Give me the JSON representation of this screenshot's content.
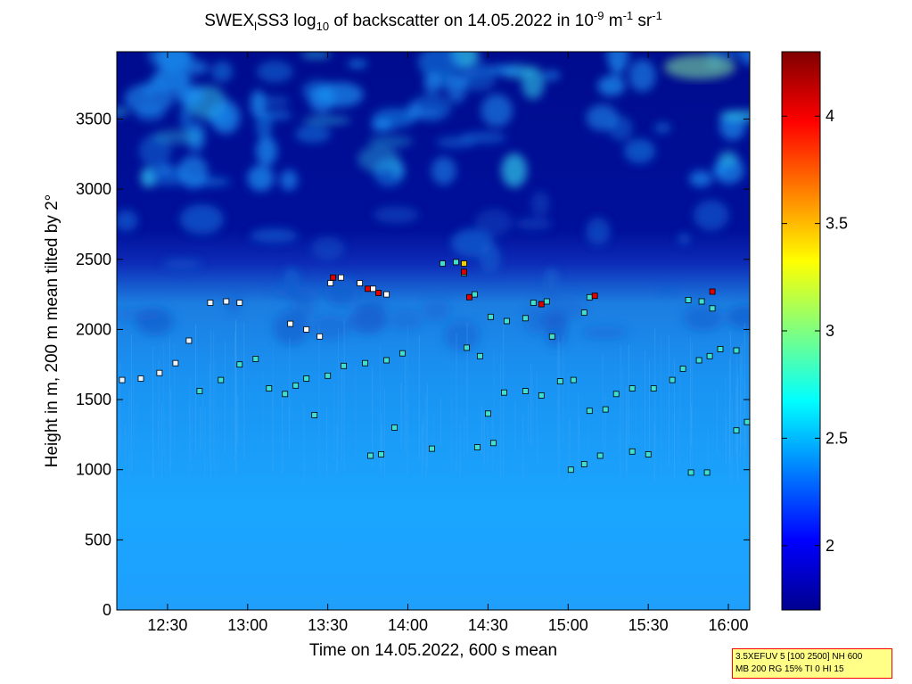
{
  "title": {
    "prefix": "SWEX",
    "sub1": "l",
    "mid": "SS3 log",
    "sub2": "10",
    "rest": " of backscatter on 14.05.2022 in 10",
    "sup1": "-9",
    "unit1": " m",
    "sup2": "-1",
    "unit2": " sr",
    "sup3": "-1"
  },
  "info_box": {
    "line1": "3.5XEFUV 5 [100 2500] NH 600",
    "line2": "MB 200 RG 15% TI 0 HI 15"
  },
  "chart_data": {
    "type": "heatmap",
    "xlabel": "Time on 14.05.2022, 600 s mean",
    "ylabel": "Height in m, 200 m mean tilted by 2°",
    "x_range": [
      "12:11",
      "16:08"
    ],
    "ylim": [
      0,
      3980
    ],
    "x_ticks": [
      "12:30",
      "13:00",
      "13:30",
      "14:00",
      "14:30",
      "15:00",
      "15:30",
      "16:00"
    ],
    "y_ticks": [
      0,
      500,
      1000,
      1500,
      2000,
      2500,
      3000,
      3500
    ],
    "colorbar": {
      "colormap": "jet",
      "range": [
        1.7,
        4.3
      ],
      "ticks": [
        2,
        2.5,
        3,
        3.5,
        4
      ]
    },
    "cloud_base_markers": [
      {
        "name": "layer-1",
        "color": "#e8f4ff",
        "points": [
          [
            "12:13",
            1640
          ],
          [
            "12:20",
            1650
          ],
          [
            "12:27",
            1690
          ],
          [
            "12:33",
            1760
          ],
          [
            "12:38",
            1920
          ],
          [
            "12:46",
            2190
          ],
          [
            "12:52",
            2200
          ],
          [
            "12:57",
            2190
          ]
        ]
      },
      {
        "name": "layer-2",
        "color": "#40e0d0",
        "points": [
          [
            "12:42",
            1560
          ],
          [
            "12:50",
            1640
          ],
          [
            "12:57",
            1750
          ],
          [
            "13:03",
            1790
          ],
          [
            "13:08",
            1580
          ],
          [
            "13:14",
            1540
          ],
          [
            "13:18",
            1600
          ],
          [
            "13:22",
            1650
          ],
          [
            "13:25",
            1390
          ]
        ]
      },
      {
        "name": "layer-3",
        "color": "#ffffff",
        "points": [
          [
            "13:16",
            2040
          ],
          [
            "13:22",
            2000
          ],
          [
            "13:27",
            1950
          ],
          [
            "13:31",
            2330
          ],
          [
            "13:35",
            2370
          ],
          [
            "13:42",
            2330
          ],
          [
            "13:47",
            2290
          ],
          [
            "13:52",
            2250
          ]
        ]
      },
      {
        "name": "layer-4",
        "color": "#40e0d0",
        "points": [
          [
            "13:30",
            1670
          ],
          [
            "13:36",
            1740
          ],
          [
            "13:44",
            1760
          ],
          [
            "13:52",
            1780
          ],
          [
            "13:58",
            1830
          ],
          [
            "13:55",
            1300
          ],
          [
            "13:50",
            1110
          ],
          [
            "13:46",
            1100
          ]
        ]
      },
      {
        "name": "layer-5",
        "color": "#40e0d0",
        "points": [
          [
            "14:09",
            1150
          ],
          [
            "14:13",
            2470
          ],
          [
            "14:18",
            2480
          ],
          [
            "14:21",
            2400
          ],
          [
            "14:25",
            2250
          ],
          [
            "14:22",
            1870
          ],
          [
            "14:27",
            1810
          ],
          [
            "14:30",
            1400
          ],
          [
            "14:26",
            1160
          ],
          [
            "14:32",
            1190
          ]
        ]
      },
      {
        "name": "layer-6",
        "color": "#40e0d0",
        "points": [
          [
            "14:31",
            2090
          ],
          [
            "14:37",
            2060
          ],
          [
            "14:44",
            2080
          ],
          [
            "14:47",
            2190
          ],
          [
            "14:52",
            2200
          ],
          [
            "14:36",
            1550
          ],
          [
            "14:44",
            1560
          ],
          [
            "14:50",
            1530
          ],
          [
            "14:54",
            1950
          ]
        ]
      },
      {
        "name": "layer-7",
        "color": "#40e0d0",
        "points": [
          [
            "14:57",
            1630
          ],
          [
            "15:02",
            1640
          ],
          [
            "15:06",
            2120
          ],
          [
            "15:08",
            2230
          ],
          [
            "15:01",
            1000
          ],
          [
            "15:06",
            1040
          ],
          [
            "15:12",
            1100
          ],
          [
            "15:08",
            1420
          ],
          [
            "15:14",
            1430
          ]
        ]
      },
      {
        "name": "layer-8",
        "color": "#40e0d0",
        "points": [
          [
            "15:18",
            1540
          ],
          [
            "15:24",
            1580
          ],
          [
            "15:32",
            1580
          ],
          [
            "15:39",
            1640
          ],
          [
            "15:43",
            1720
          ],
          [
            "15:49",
            1780
          ],
          [
            "15:53",
            1810
          ],
          [
            "15:57",
            1860
          ],
          [
            "16:03",
            1850
          ]
        ]
      },
      {
        "name": "layer-9",
        "color": "#40e0d0",
        "points": [
          [
            "15:24",
            1130
          ],
          [
            "15:30",
            1110
          ],
          [
            "15:45",
            2210
          ],
          [
            "15:50",
            2200
          ],
          [
            "15:54",
            2150
          ],
          [
            "15:46",
            980
          ],
          [
            "15:52",
            980
          ],
          [
            "16:03",
            1280
          ],
          [
            "16:07",
            1340
          ]
        ]
      },
      {
        "name": "red-markers",
        "color": "#e00000",
        "points": [
          [
            "13:32",
            2370
          ],
          [
            "13:45",
            2290
          ],
          [
            "13:49",
            2260
          ],
          [
            "14:21",
            2410
          ],
          [
            "14:23",
            2230
          ],
          [
            "14:50",
            2180
          ],
          [
            "15:10",
            2240
          ],
          [
            "15:54",
            2270
          ]
        ]
      },
      {
        "name": "yellow-markers",
        "color": "#f0d000",
        "points": [
          [
            "14:21",
            2470
          ]
        ]
      }
    ]
  }
}
